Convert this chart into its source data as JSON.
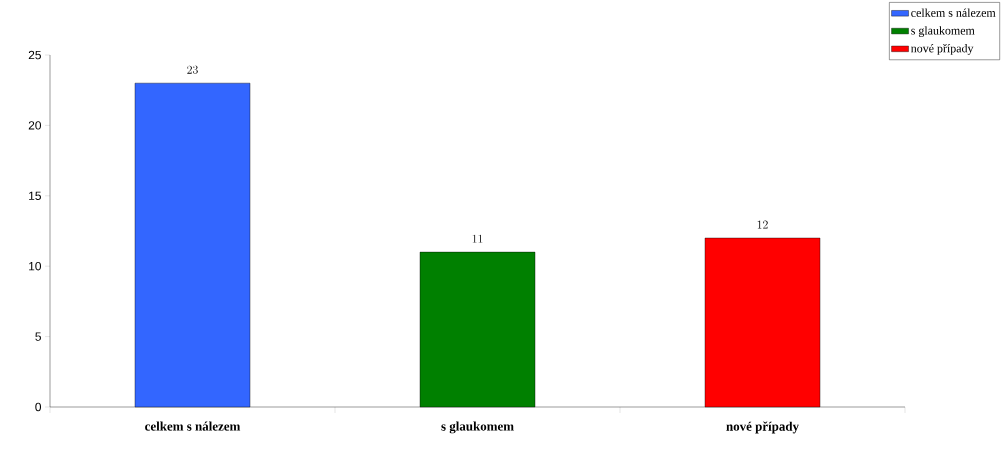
{
  "chart_data": {
    "type": "bar",
    "categories": [
      "celkem s nálezem",
      "s glaukomem",
      "nové případy"
    ],
    "series": [
      {
        "name": "celkem s nálezem",
        "color": "#3366ff",
        "values": [
          23,
          null,
          null
        ]
      },
      {
        "name": "s glaukomem",
        "color": "#008000",
        "values": [
          null,
          11,
          null
        ]
      },
      {
        "name": "nové případy",
        "color": "#ff0000",
        "values": [
          null,
          null,
          12
        ]
      }
    ],
    "ylim": [
      0,
      25
    ],
    "yticks": [
      0,
      5,
      10,
      15,
      20,
      25
    ],
    "data_labels": true,
    "legend": "top right",
    "grid": false
  }
}
